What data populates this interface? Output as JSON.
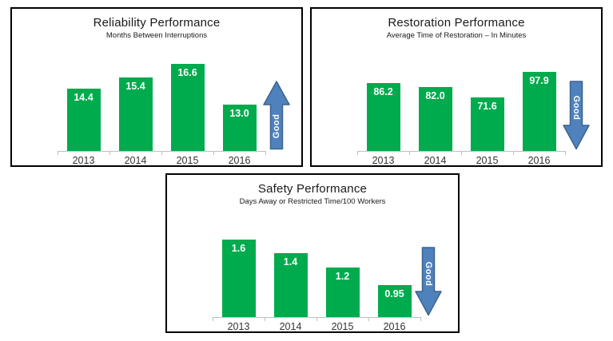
{
  "chart_data": [
    {
      "type": "bar",
      "title": "Reliability Performance",
      "subtitle": "Months Between Interruptions",
      "categories": [
        "2013",
        "2014",
        "2015",
        "2016"
      ],
      "values": [
        14.4,
        15.4,
        16.6,
        13.0
      ],
      "value_labels": [
        "14.4",
        "15.4",
        "16.6",
        "13.0"
      ],
      "ylim": [
        9,
        17
      ],
      "grid": false,
      "annotation": {
        "label": "Good",
        "direction": "up"
      },
      "bar_color": "#00AB4E",
      "arrow_fill": "#4F81BD",
      "arrow_border": "#3A648F"
    },
    {
      "type": "bar",
      "title": "Restoration Performance",
      "subtitle": "Average Time of Restoration – In Minutes",
      "categories": [
        "2013",
        "2014",
        "2015",
        "2016"
      ],
      "values": [
        86.2,
        82.0,
        71.6,
        97.9
      ],
      "value_labels": [
        "86.2",
        "82.0",
        "71.6",
        "97.9"
      ],
      "ylim": [
        15,
        100
      ],
      "grid": false,
      "annotation": {
        "label": "Good",
        "direction": "down"
      },
      "bar_color": "#00AB4E",
      "arrow_fill": "#4F81BD",
      "arrow_border": "#3A648F"
    },
    {
      "type": "bar",
      "title": "Safety Performance",
      "subtitle": "Days Away or Restricted Time/100 Workers",
      "categories": [
        "2013",
        "2014",
        "2015",
        "2016"
      ],
      "values": [
        1.6,
        1.4,
        1.2,
        0.95
      ],
      "value_labels": [
        "1.6",
        "1.4",
        "1.2",
        "0.95"
      ],
      "ylim": [
        0.5,
        1.7
      ],
      "grid": false,
      "annotation": {
        "label": "Good",
        "direction": "down"
      },
      "bar_color": "#00AB4E",
      "arrow_fill": "#4F81BD",
      "arrow_border": "#3A648F"
    }
  ],
  "colors": {
    "background": "#FFFFFF",
    "panel_border": "#000000",
    "axis": "#BFBFBF",
    "bar": "#00AB4E",
    "arrow_fill": "#4F81BD",
    "arrow_border": "#3A648F",
    "value_label_text": "#FFFFFF",
    "year_label_text": "#333333",
    "title_text": "#1A1A1A"
  }
}
